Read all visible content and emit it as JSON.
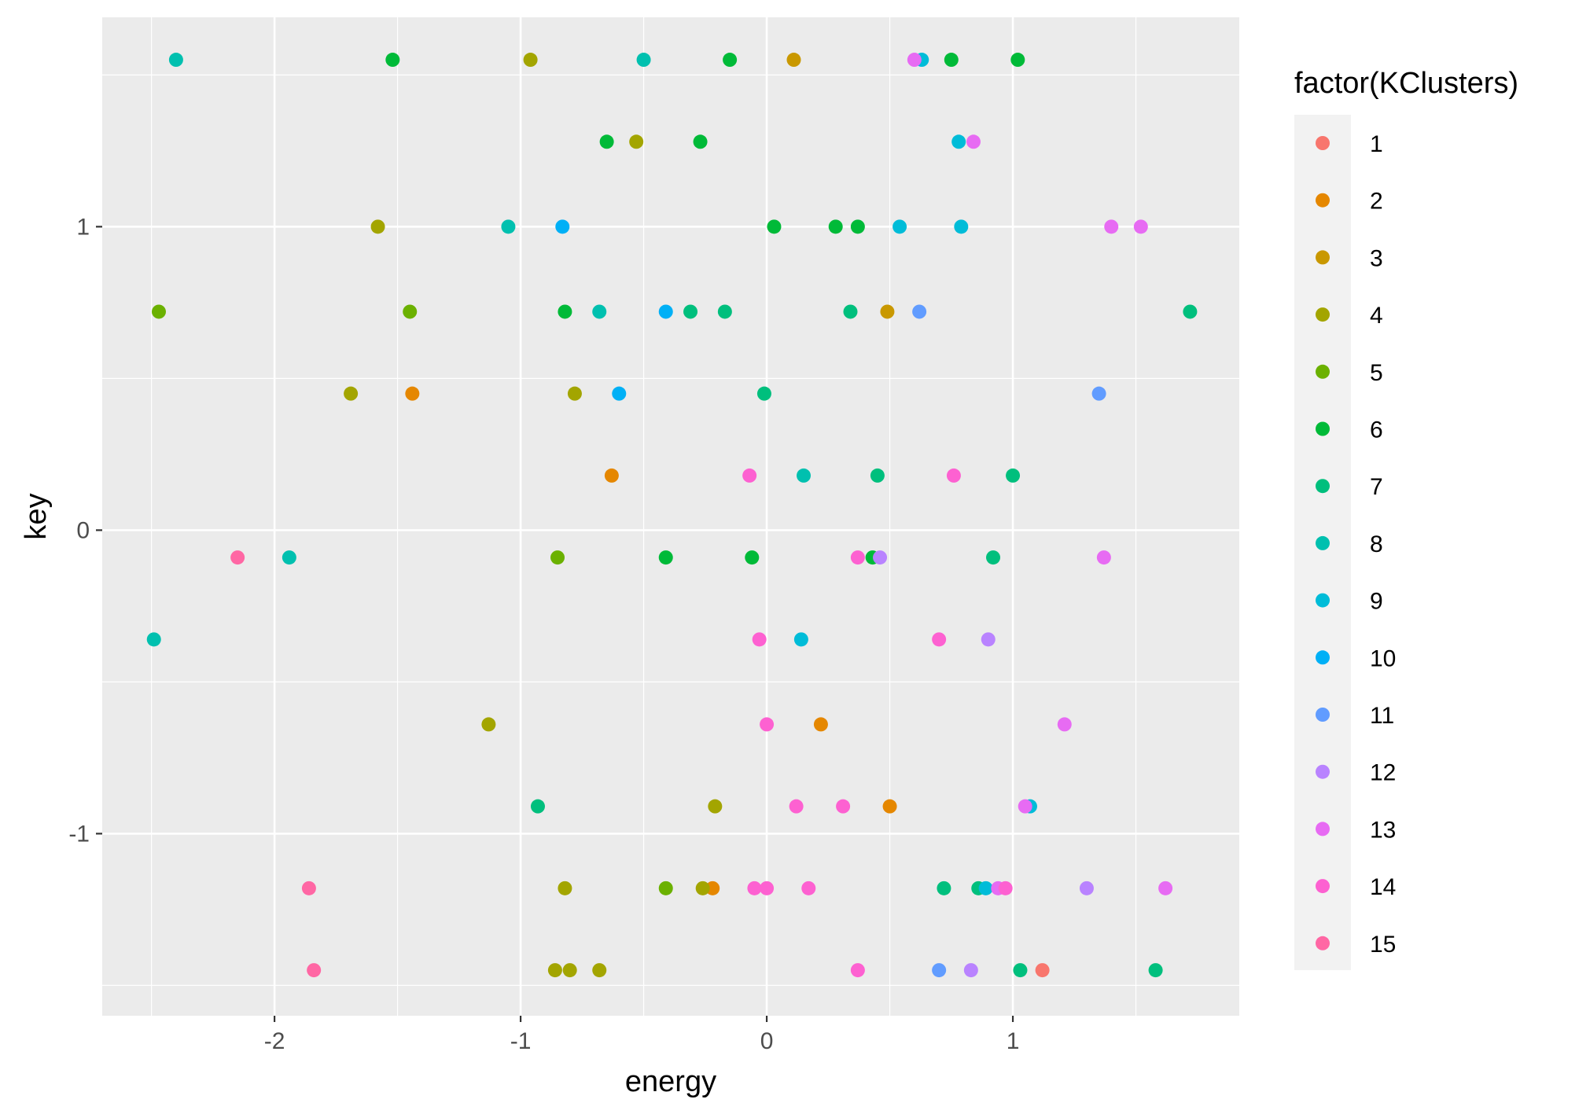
{
  "chart_data": {
    "type": "scatter",
    "title": "",
    "xlabel": "energy",
    "ylabel": "key",
    "xlim": [
      -2.7,
      1.92
    ],
    "ylim": [
      -1.6,
      1.69
    ],
    "x_ticks": [
      -2,
      -1,
      0,
      1
    ],
    "x_tick_labels": [
      "-2",
      "-1",
      "0",
      "1"
    ],
    "y_ticks": [
      -1,
      0,
      1
    ],
    "y_tick_labels": [
      "-1",
      "0",
      "1"
    ],
    "grid": true,
    "legend": {
      "title": "factor(KClusters)",
      "position": "right",
      "entries": [
        "1",
        "2",
        "3",
        "4",
        "5",
        "6",
        "7",
        "8",
        "9",
        "10",
        "11",
        "12",
        "13",
        "14",
        "15"
      ]
    },
    "colors": {
      "1": "#F8766D",
      "2": "#E58700",
      "3": "#C99800",
      "4": "#A3A500",
      "5": "#6BB100",
      "6": "#00BA38",
      "7": "#00BF7D",
      "8": "#00C0AF",
      "9": "#00BCD8",
      "10": "#00B0F6",
      "11": "#619CFF",
      "12": "#B983FF",
      "13": "#E76BF3",
      "14": "#FD61D1",
      "15": "#FF67A4"
    },
    "series": [
      {
        "name": "1",
        "points": [
          [
            1.12,
            -1.45
          ]
        ]
      },
      {
        "name": "2",
        "points": [
          [
            -1.44,
            0.45
          ],
          [
            -0.63,
            0.18
          ],
          [
            0.22,
            -0.64
          ],
          [
            0.5,
            -0.91
          ],
          [
            -0.22,
            -1.18
          ]
        ]
      },
      {
        "name": "3",
        "points": [
          [
            0.11,
            1.55
          ],
          [
            0.49,
            0.72
          ]
        ]
      },
      {
        "name": "4",
        "points": [
          [
            -0.96,
            1.55
          ],
          [
            -0.53,
            1.28
          ],
          [
            -1.58,
            1.0
          ],
          [
            -1.69,
            0.45
          ],
          [
            -0.78,
            0.45
          ],
          [
            -1.13,
            -0.64
          ],
          [
            -0.21,
            -0.91
          ],
          [
            -0.82,
            -1.18
          ],
          [
            -0.26,
            -1.18
          ],
          [
            -0.86,
            -1.45
          ],
          [
            -0.8,
            -1.45
          ],
          [
            -0.68,
            -1.45
          ]
        ]
      },
      {
        "name": "5",
        "points": [
          [
            -2.47,
            0.72
          ],
          [
            -1.45,
            0.72
          ],
          [
            -0.85,
            -0.09
          ],
          [
            -0.41,
            -1.18
          ]
        ]
      },
      {
        "name": "6",
        "points": [
          [
            -1.52,
            1.55
          ],
          [
            -0.15,
            1.55
          ],
          [
            0.75,
            1.55
          ],
          [
            1.02,
            1.55
          ],
          [
            -0.65,
            1.28
          ],
          [
            -0.27,
            1.28
          ],
          [
            0.03,
            1.0
          ],
          [
            0.28,
            1.0
          ],
          [
            0.37,
            1.0
          ],
          [
            -0.82,
            0.72
          ],
          [
            -0.41,
            -0.09
          ],
          [
            -0.06,
            -0.09
          ],
          [
            0.43,
            -0.09
          ]
        ]
      },
      {
        "name": "7",
        "points": [
          [
            -0.31,
            0.72
          ],
          [
            -0.17,
            0.72
          ],
          [
            0.34,
            0.72
          ],
          [
            1.72,
            0.72
          ],
          [
            -0.01,
            0.45
          ],
          [
            0.45,
            0.18
          ],
          [
            1.0,
            0.18
          ],
          [
            0.92,
            -0.09
          ],
          [
            -0.93,
            -0.91
          ],
          [
            0.72,
            -1.18
          ],
          [
            0.86,
            -1.18
          ],
          [
            1.03,
            -1.45
          ],
          [
            1.58,
            -1.45
          ]
        ]
      },
      {
        "name": "8",
        "points": [
          [
            -2.4,
            1.55
          ],
          [
            -0.5,
            1.55
          ],
          [
            -1.05,
            1.0
          ],
          [
            -0.68,
            0.72
          ],
          [
            0.15,
            0.18
          ],
          [
            -1.94,
            -0.09
          ],
          [
            -2.49,
            -0.36
          ]
        ]
      },
      {
        "name": "9",
        "points": [
          [
            0.63,
            1.55
          ],
          [
            0.78,
            1.28
          ],
          [
            0.54,
            1.0
          ],
          [
            0.79,
            1.0
          ],
          [
            0.14,
            -0.36
          ],
          [
            1.07,
            -0.91
          ],
          [
            0.89,
            -1.18
          ]
        ]
      },
      {
        "name": "10",
        "points": [
          [
            -0.83,
            1.0
          ],
          [
            -0.41,
            0.72
          ],
          [
            -0.6,
            0.45
          ]
        ]
      },
      {
        "name": "11",
        "points": [
          [
            0.62,
            0.72
          ],
          [
            1.35,
            0.45
          ],
          [
            0.7,
            -1.45
          ]
        ]
      },
      {
        "name": "12",
        "points": [
          [
            0.46,
            -0.09
          ],
          [
            0.9,
            -0.36
          ],
          [
            1.3,
            -1.18
          ],
          [
            0.83,
            -1.45
          ]
        ]
      },
      {
        "name": "13",
        "points": [
          [
            0.6,
            1.55
          ],
          [
            0.84,
            1.28
          ],
          [
            1.4,
            1.0
          ],
          [
            1.52,
            1.0
          ],
          [
            1.37,
            -0.09
          ],
          [
            1.21,
            -0.64
          ],
          [
            1.05,
            -0.91
          ],
          [
            0.94,
            -1.18
          ],
          [
            1.62,
            -1.18
          ]
        ]
      },
      {
        "name": "14",
        "points": [
          [
            -0.07,
            0.18
          ],
          [
            0.76,
            0.18
          ],
          [
            0.37,
            -0.09
          ],
          [
            -0.03,
            -0.36
          ],
          [
            0.7,
            -0.36
          ],
          [
            0.0,
            -0.64
          ],
          [
            0.12,
            -0.91
          ],
          [
            0.31,
            -0.91
          ],
          [
            -0.05,
            -1.18
          ],
          [
            0.0,
            -1.18
          ],
          [
            0.17,
            -1.18
          ],
          [
            0.97,
            -1.18
          ],
          [
            0.37,
            -1.45
          ]
        ]
      },
      {
        "name": "15",
        "points": [
          [
            -2.15,
            -0.09
          ],
          [
            -1.86,
            -1.18
          ],
          [
            -1.84,
            -1.45
          ]
        ]
      }
    ]
  }
}
